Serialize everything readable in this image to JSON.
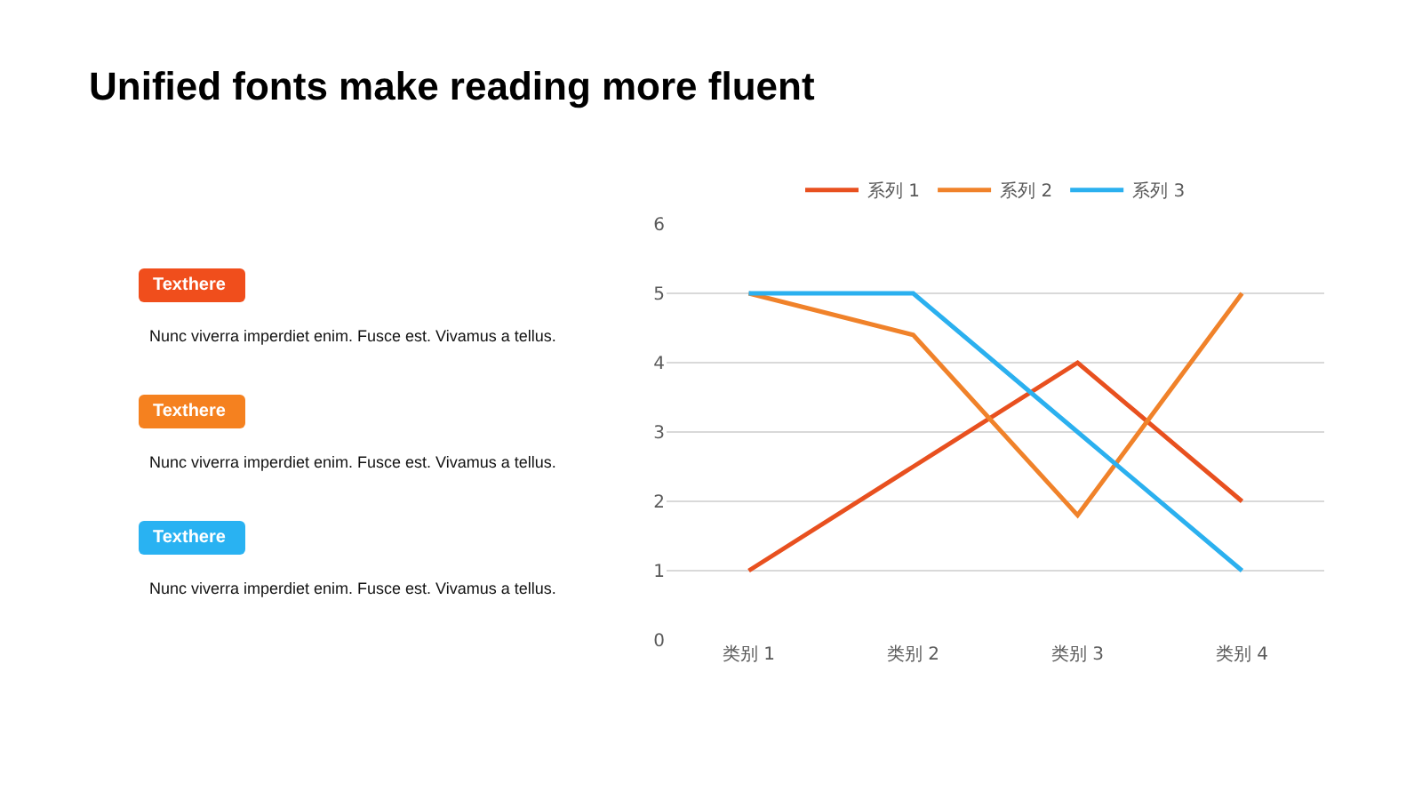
{
  "chart_data": [
    {
      "type": "other",
      "title": "Unified fonts make reading more fluent",
      "categories": [
        "Texthere",
        "Texthere",
        "Texthere"
      ],
      "colors": [
        "#f04e1c",
        "#f5811f",
        "#29b2f2"
      ],
      "annotations": [
        "Nunc viverra imperdiet enim. Fusce est. Vivamus a tellus.",
        "Nunc viverra imperdiet enim. Fusce est. Vivamus a tellus.",
        "Nunc viverra imperdiet enim. Fusce est. Vivamus a tellus."
      ]
    },
    {
      "type": "line",
      "categories": [
        "类别 1",
        "类别 2",
        "类别 3",
        "类别 4"
      ],
      "series": [
        {
          "name": "系列 1",
          "color": "#e8501f",
          "values": [
            1,
            2.5,
            4,
            2
          ]
        },
        {
          "name": "系列 2",
          "color": "#f0822a",
          "values": [
            5,
            4.4,
            1.8,
            5
          ]
        },
        {
          "name": "系列 3",
          "color": "#2bb0ef",
          "values": [
            5,
            5,
            3,
            1
          ]
        }
      ],
      "ylim": [
        0,
        6
      ],
      "yticks": [
        0,
        1,
        2,
        3,
        4,
        5,
        6
      ],
      "grid": "y",
      "legend": "top",
      "marker": "none",
      "line_style": "solid"
    }
  ]
}
